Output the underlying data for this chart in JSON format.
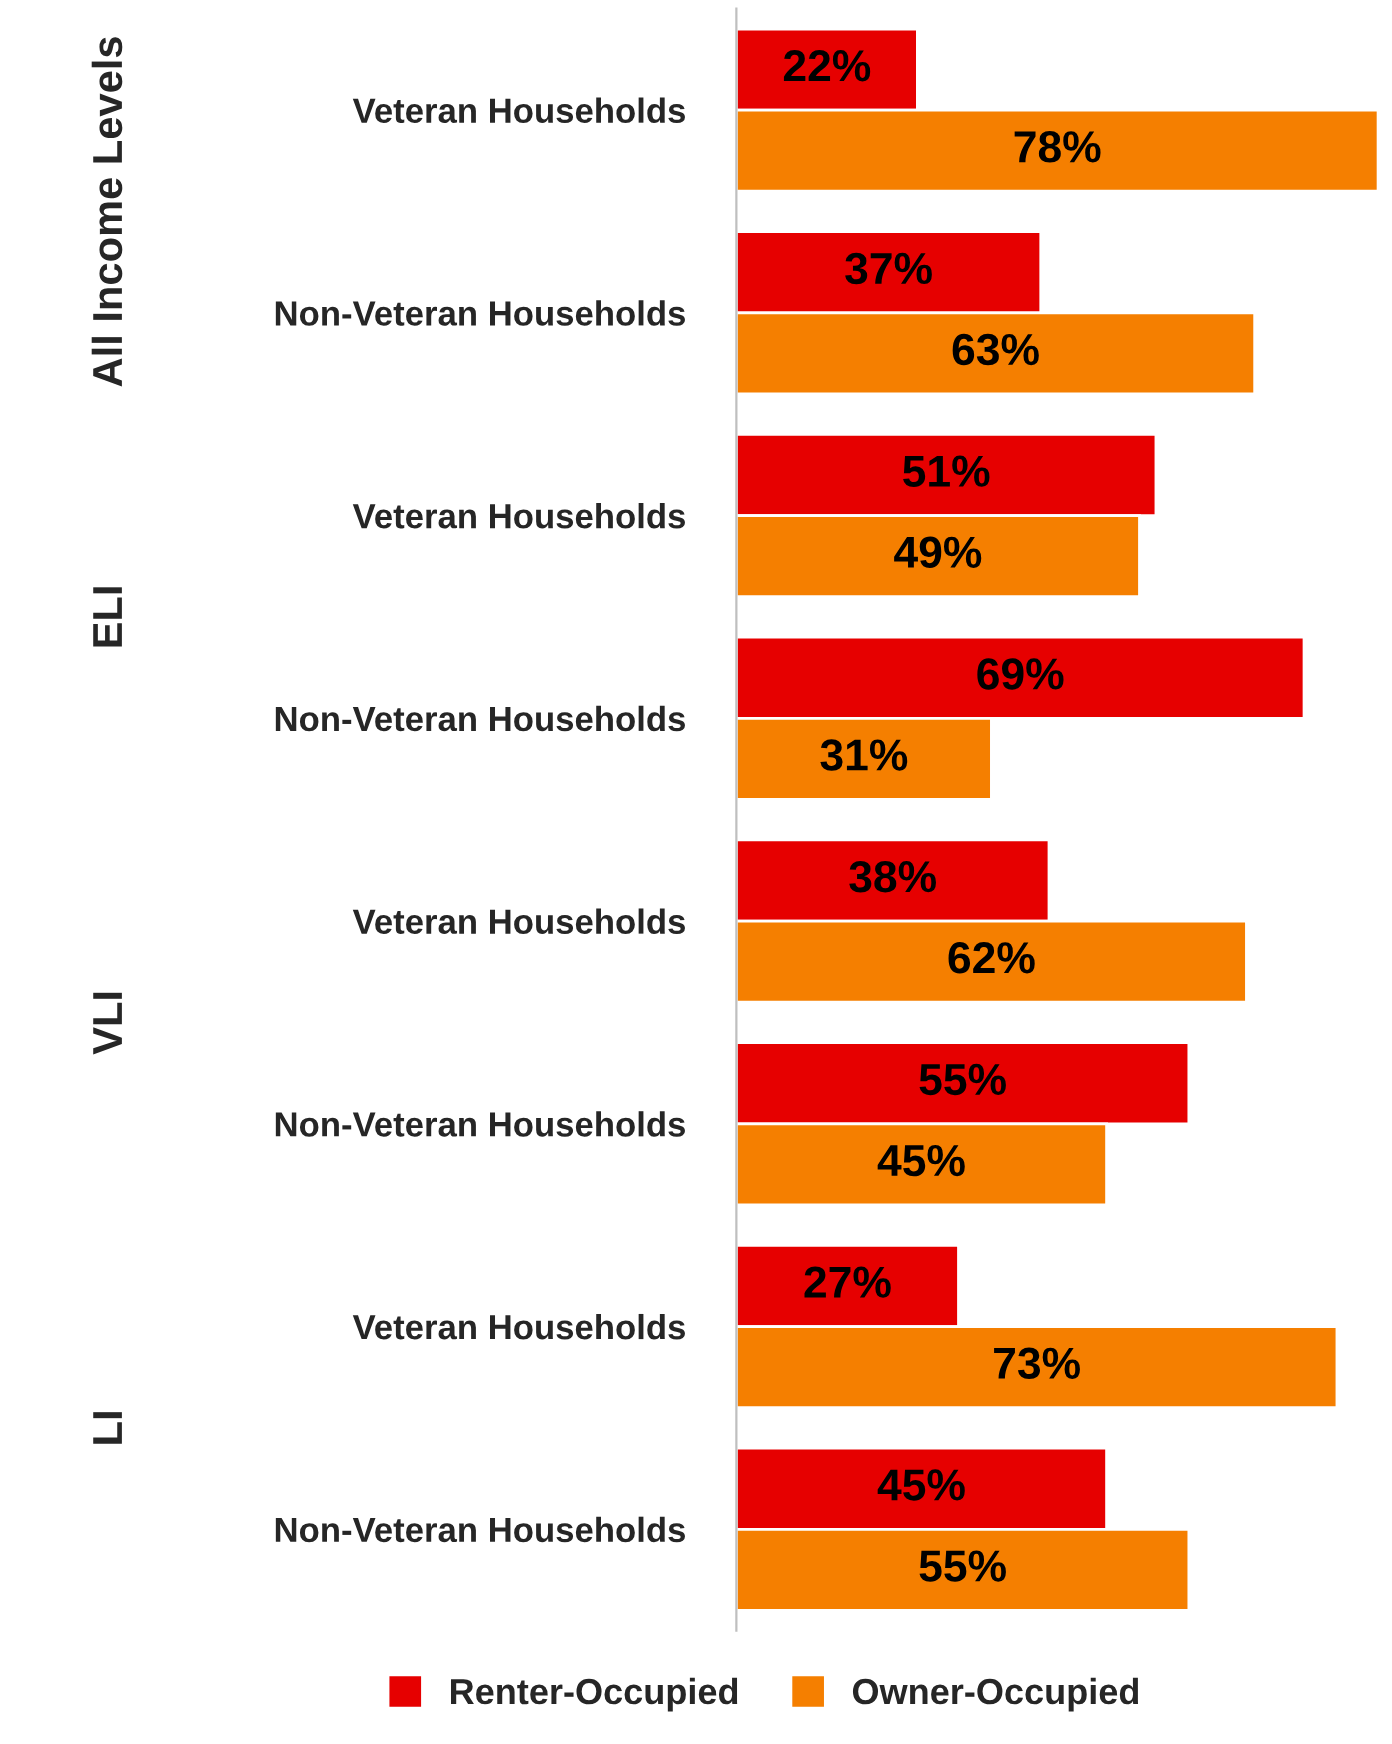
{
  "chart_data": {
    "type": "bar",
    "orientation": "horizontal",
    "legend": "bottom",
    "categories": [
      "Veteran Households",
      "Non-Veteran Households",
      "Veteran Households",
      "Non-Veteran Households",
      "Veteran Households",
      "Non-Veteran Households",
      "Veteran Households",
      "Non-Veteran Households"
    ],
    "series": [
      {
        "name": "Renter-Occupied",
        "color": "#e60000",
        "values": [
          22,
          37,
          51,
          69,
          38,
          55,
          27,
          45
        ],
        "value_labels": [
          "22%",
          "37%",
          "51%",
          "69%",
          "38%",
          "55%",
          "27%",
          "45%"
        ]
      },
      {
        "name": "Owner-Occupied",
        "color": "#f57f00",
        "values": [
          78,
          63,
          49,
          31,
          62,
          45,
          73,
          55
        ],
        "value_labels": [
          "78%",
          "63%",
          "49%",
          "31%",
          "62%",
          "45%",
          "73%",
          "55%"
        ]
      }
    ],
    "annotations": [
      "All Income Levels",
      "ELI",
      "VLI",
      "LI"
    ]
  }
}
